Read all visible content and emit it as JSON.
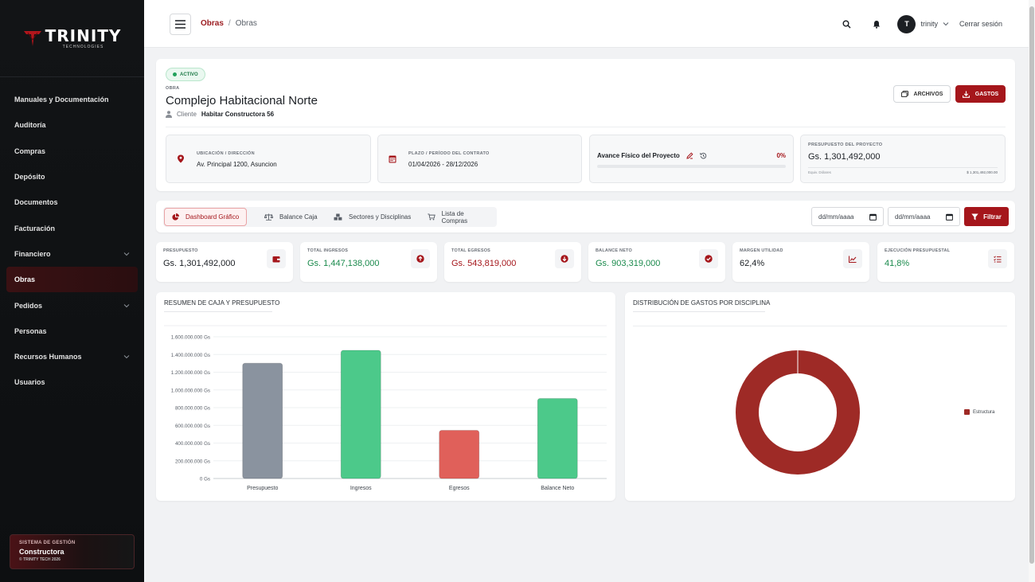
{
  "sidebar": {
    "brand_name": "TRINITY",
    "brand_sub": "TECHNOLOGIES",
    "items": [
      {
        "label": "Manuales y Documentación",
        "has_chevron": false
      },
      {
        "label": "Auditoría",
        "has_chevron": false
      },
      {
        "label": "Compras",
        "has_chevron": false
      },
      {
        "label": "Depósito",
        "has_chevron": false
      },
      {
        "label": "Documentos",
        "has_chevron": false
      },
      {
        "label": "Facturación",
        "has_chevron": false
      },
      {
        "label": "Financiero",
        "has_chevron": true
      },
      {
        "label": "Obras",
        "has_chevron": false,
        "active": true
      },
      {
        "label": "Pedidos",
        "has_chevron": true
      },
      {
        "label": "Personas",
        "has_chevron": false
      },
      {
        "label": "Recursos Humanos",
        "has_chevron": true
      },
      {
        "label": "Usuarios",
        "has_chevron": false
      }
    ],
    "footer": {
      "line1": "SISTEMA DE GESTIÓN",
      "line2": "Constructora",
      "line3": "© TRINITY TECH 2026"
    }
  },
  "topbar": {
    "breadcrumb": [
      "Obras",
      "Obras"
    ],
    "breadcrumb_sep": "/",
    "avatar_letter": "T",
    "username": "trinity",
    "logout": "Cerrar sesión"
  },
  "project": {
    "status": "ACTIVO",
    "label": "OBRA",
    "title": "Complejo Habitacional Norte",
    "client_label": "Cliente",
    "client_name": "Habitar Constructora 56",
    "archivos_label": "ARCHIVOS",
    "gastos_label": "GASTOS",
    "location": {
      "label": "UBICACIÓN / DIRECCIÓN",
      "value": "Av. Principal 1200, Asuncion"
    },
    "period": {
      "label": "PLAZO / PERÍODO DEL CONTRATO",
      "value": "01/04/2026 - 28/12/2026"
    },
    "progress": {
      "label": "Avance Físico del Proyecto",
      "percent_text": "0%",
      "percent": 0
    },
    "budget": {
      "label": "PRESUPUESTO DEL PROYECTO",
      "value": "Gs. 1,301,492,000",
      "sub_label": "Equiv. Dólares",
      "sub_value": "$ 1,301,492,000.00"
    }
  },
  "tabs": [
    {
      "label": "Dashboard Gráfico",
      "active": true
    },
    {
      "label": "Balance Caja",
      "active": false
    },
    {
      "label": "Sectores y Disciplinas",
      "active": false
    },
    {
      "label": "Lista de Compras",
      "active": false
    }
  ],
  "filters": {
    "date_from_placeholder": "dd/mm/aaaa",
    "date_to_placeholder": "dd/mm/aaaa",
    "filter_label": "Filtrar"
  },
  "kpis": [
    {
      "label": "PRESUPUESTO",
      "value": "Gs. 1,301,492,000",
      "color": "#1b1f24"
    },
    {
      "label": "TOTAL INGRESOS",
      "value": "Gs. 1,447,138,000",
      "color": "#1a8a4c"
    },
    {
      "label": "TOTAL EGRESOS",
      "value": "Gs. 543,819,000",
      "color": "#a5161b"
    },
    {
      "label": "BALANCE NETO",
      "value": "Gs. 903,319,000",
      "color": "#1a8a4c"
    },
    {
      "label": "MARGEN UTILIDAD",
      "value": "62,4%",
      "color": "#1b1f24"
    },
    {
      "label": "EJECUCIÓN PRESUPUESTAL",
      "value": "41,8%",
      "color": "#1a8a4c"
    }
  ],
  "charts": {
    "bar_title": "RESUMEN DE CAJA Y PRESUPUESTO",
    "donut_title": "DISTRIBUCIÓN DE GASTOS POR DISCIPLINA",
    "donut_legend": "Estructura"
  },
  "chart_data": [
    {
      "type": "bar",
      "title": "RESUMEN DE CAJA Y PRESUPUESTO",
      "categories": [
        "Presupuesto",
        "Ingresos",
        "Egresos",
        "Balance Neto"
      ],
      "values": [
        1301492000,
        1447138000,
        543819000,
        903319000
      ],
      "colors": [
        "#8a939f",
        "#4cc98a",
        "#e0605a",
        "#4cc98a"
      ],
      "ylim": [
        0,
        1600000000
      ],
      "yticks": [
        "0 Gs",
        "200.000.000 Gs",
        "400.000.000 Gs",
        "600.000.000 Gs",
        "800.000.000 Gs",
        "1.000.000.000 Gs",
        "1.200.000.000 Gs",
        "1.400.000.000 Gs",
        "1.600.000.000 Gs"
      ],
      "grid": true
    },
    {
      "type": "pie",
      "title": "DISTRIBUCIÓN DE GASTOS POR DISCIPLINA",
      "labels": [
        "Estructura"
      ],
      "values": [
        100
      ],
      "colors": [
        "#9e2a26"
      ],
      "legend": "right"
    }
  ]
}
